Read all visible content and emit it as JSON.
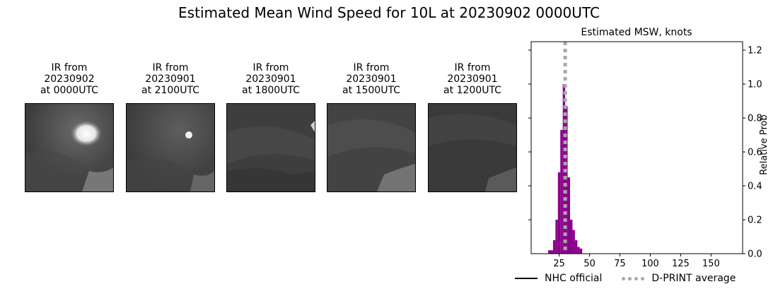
{
  "figure": {
    "title": "Estimated Mean Wind Speed for 10L at 20230902 0000UTC"
  },
  "panels": [
    {
      "line1": "IR from",
      "line2": "20230902",
      "line3": "at 0000UTC"
    },
    {
      "line1": "IR from",
      "line2": "20230901",
      "line3": "at 2100UTC"
    },
    {
      "line1": "IR from",
      "line2": "20230901",
      "line3": "at 1800UTC"
    },
    {
      "line1": "IR from",
      "line2": "20230901",
      "line3": "at 1500UTC"
    },
    {
      "line1": "IR from",
      "line2": "20230901",
      "line3": "at 1200UTC"
    }
  ],
  "legend": {
    "official_label": "NHC official",
    "dprint_label": "D-PRINT average"
  },
  "chart_data": {
    "type": "bar",
    "title": "Estimated MSW, knots",
    "ylabel": "Relative Prob",
    "xlim": [
      2,
      176
    ],
    "ylim": [
      0,
      1.25
    ],
    "x_ticks": [
      25,
      50,
      75,
      100,
      125,
      150
    ],
    "y_ticks": [
      0.0,
      0.2,
      0.4,
      0.6,
      0.8,
      1.0,
      1.2
    ],
    "y_tick_labels": [
      "0.0",
      "0.2",
      "0.4",
      "0.6",
      "0.8",
      "1.0",
      "1.2"
    ],
    "left_unlabeled_ticks": [
      0.2,
      0.4,
      0.6,
      0.8,
      1.0,
      1.2
    ],
    "bar_width": 2,
    "bar_color": "#8b008b",
    "bars": [
      {
        "x": 17,
        "y": 0.02
      },
      {
        "x": 19,
        "y": 0.02
      },
      {
        "x": 21,
        "y": 0.08
      },
      {
        "x": 23,
        "y": 0.2
      },
      {
        "x": 25,
        "y": 0.48
      },
      {
        "x": 27,
        "y": 0.73
      },
      {
        "x": 29,
        "y": 1.0
      },
      {
        "x": 31,
        "y": 0.87
      },
      {
        "x": 33,
        "y": 0.45
      },
      {
        "x": 35,
        "y": 0.2
      },
      {
        "x": 37,
        "y": 0.14
      },
      {
        "x": 39,
        "y": 0.08
      },
      {
        "x": 41,
        "y": 0.04
      },
      {
        "x": 43,
        "y": 0.03
      }
    ],
    "dprint_average": 30,
    "dprint_color": "#a9a9a9"
  }
}
